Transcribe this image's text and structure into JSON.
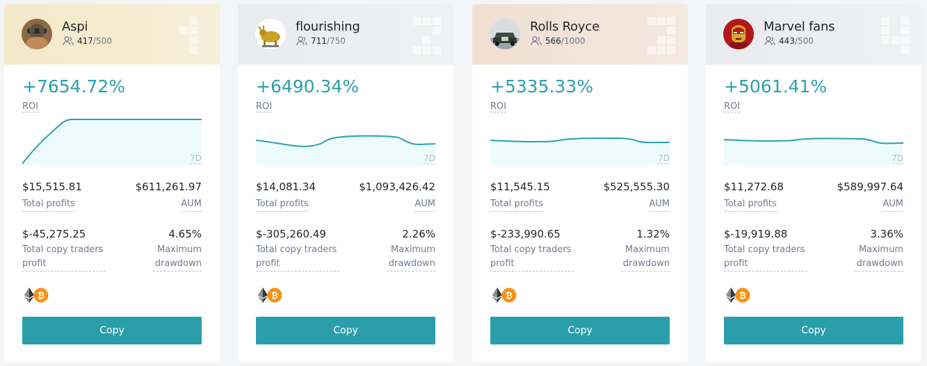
{
  "cards": [
    {
      "name": "Aspi",
      "followers": "417",
      "followers_max": "/500",
      "rank": "1",
      "roi": "+7654.72%",
      "roi_label": "ROI",
      "period": "7D",
      "total_profits": "$15,515.81",
      "total_profits_label": "Total profits",
      "aum": "$611,261.97",
      "aum_label": "AUM",
      "copy_traders_profit": "$-45,275.25",
      "copy_traders_profit_label": "Total copy traders profit",
      "max_drawdown": "4.65%",
      "max_drawdown_label": "Maximum drawdown",
      "coins": [
        "eth-icon",
        "btc-icon"
      ],
      "copy_label": "Copy"
    },
    {
      "name": "flourishing",
      "followers": "711",
      "followers_max": "/750",
      "rank": "2",
      "roi": "+6490.34%",
      "roi_label": "ROI",
      "period": "7D",
      "total_profits": "$14,081.34",
      "total_profits_label": "Total profits",
      "aum": "$1,093,426.42",
      "aum_label": "AUM",
      "copy_traders_profit": "$-305,260.49",
      "copy_traders_profit_label": "Total copy traders profit",
      "max_drawdown": "2.26%",
      "max_drawdown_label": "Maximum drawdown",
      "coins": [
        "eth-icon",
        "btc-icon"
      ],
      "copy_label": "Copy"
    },
    {
      "name": "Rolls Royce",
      "followers": "566",
      "followers_max": "/1000",
      "rank": "3",
      "roi": "+5335.33%",
      "roi_label": "ROI",
      "period": "7D",
      "total_profits": "$11,545.15",
      "total_profits_label": "Total profits",
      "aum": "$525,555.30",
      "aum_label": "AUM",
      "copy_traders_profit": "$-233,990.65",
      "copy_traders_profit_label": "Total copy traders profit",
      "max_drawdown": "1.32%",
      "max_drawdown_label": "Maximum drawdown",
      "coins": [
        "eth-icon",
        "btc-icon"
      ],
      "copy_label": "Copy"
    },
    {
      "name": "Marvel fans",
      "followers": "443",
      "followers_max": "/500",
      "rank": "4",
      "roi": "+5061.41%",
      "roi_label": "ROI",
      "period": "7D",
      "total_profits": "$11,272.68",
      "total_profits_label": "Total profits",
      "aum": "$589,997.64",
      "aum_label": "AUM",
      "copy_traders_profit": "$-19,919.88",
      "copy_traders_profit_label": "Total copy traders profit",
      "max_drawdown": "3.36%",
      "max_drawdown_label": "Maximum drawdown",
      "coins": [
        "eth-icon",
        "btc-icon"
      ],
      "copy_label": "Copy"
    }
  ],
  "colors": {
    "accent": "#2a9fab",
    "sparkline_fill": "#eefbfc",
    "eth": "#343434",
    "btc": "#f7931a"
  }
}
